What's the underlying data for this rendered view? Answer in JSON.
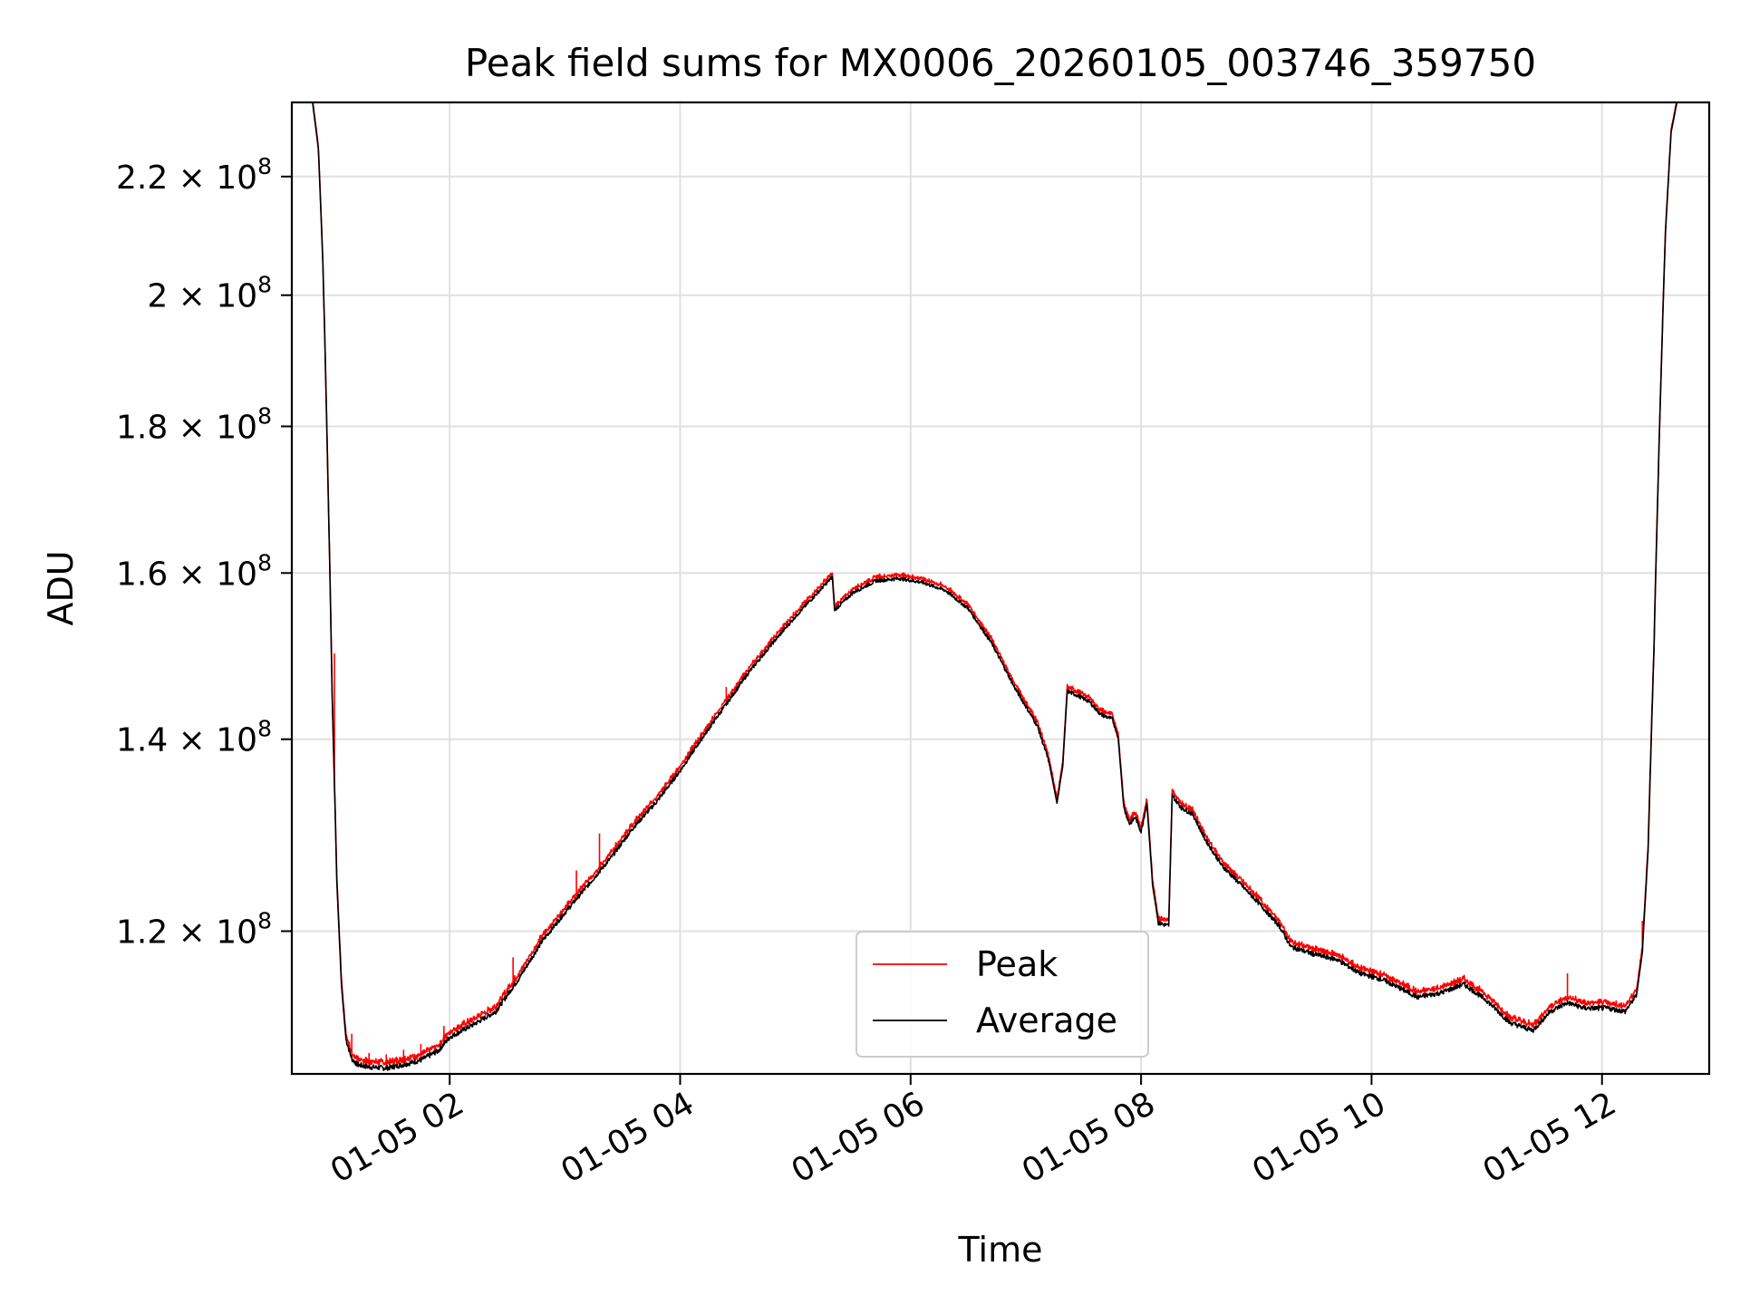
{
  "chart_data": {
    "type": "line",
    "title": "Peak field sums for MX0006_20260105_003746_359750",
    "xlabel": "Time",
    "ylabel": "ADU",
    "x_unit": "hours since 2026-01-05 00:00",
    "xlim": [
      0.63,
      12.93
    ],
    "ylim": [
      107000000,
      233500000
    ],
    "y_scale": "log",
    "grid": true,
    "legend_position": "lower-center",
    "x_ticks": [
      {
        "value": 2,
        "label": "01-05 02"
      },
      {
        "value": 4,
        "label": "01-05 04"
      },
      {
        "value": 6,
        "label": "01-05 06"
      },
      {
        "value": 8,
        "label": "01-05 08"
      },
      {
        "value": 10,
        "label": "01-05 10"
      },
      {
        "value": 12,
        "label": "01-05 12"
      }
    ],
    "y_ticks": [
      {
        "value": 120000000,
        "mantissa": "1.2",
        "exponent": "8"
      },
      {
        "value": 140000000,
        "mantissa": "1.4",
        "exponent": "8"
      },
      {
        "value": 160000000,
        "mantissa": "1.6",
        "exponent": "8"
      },
      {
        "value": 180000000,
        "mantissa": "1.8",
        "exponent": "8"
      },
      {
        "value": 200000000,
        "mantissa": "2",
        "exponent": "8"
      },
      {
        "value": 220000000,
        "mantissa": "2.2",
        "exponent": "8"
      }
    ],
    "times_symbol": "×",
    "tick_base": "10",
    "series": [
      {
        "name": "Peak",
        "color": "#ff0000"
      },
      {
        "name": "Average",
        "color": "#000000"
      }
    ],
    "average_points": [
      [
        0.81,
        233.5
      ],
      [
        0.86,
        225
      ],
      [
        0.9,
        205
      ],
      [
        0.94,
        175
      ],
      [
        0.98,
        145
      ],
      [
        1.02,
        125
      ],
      [
        1.06,
        115
      ],
      [
        1.1,
        110
      ],
      [
        1.15,
        108.3
      ],
      [
        1.2,
        107.8
      ],
      [
        1.3,
        107.6
      ],
      [
        1.45,
        107.5
      ],
      [
        1.6,
        107.8
      ],
      [
        1.75,
        108.2
      ],
      [
        1.9,
        109
      ],
      [
        2.0,
        110.2
      ],
      [
        2.2,
        111.3
      ],
      [
        2.4,
        112.5
      ],
      [
        2.6,
        115.5
      ],
      [
        2.8,
        119
      ],
      [
        3.0,
        121.8
      ],
      [
        3.2,
        124.5
      ],
      [
        3.4,
        127.3
      ],
      [
        3.6,
        130.5
      ],
      [
        3.8,
        133.2
      ],
      [
        4.0,
        136.5
      ],
      [
        4.2,
        140.3
      ],
      [
        4.4,
        144
      ],
      [
        4.6,
        147.8
      ],
      [
        4.8,
        151.2
      ],
      [
        5.0,
        154.5
      ],
      [
        5.2,
        157.6
      ],
      [
        5.32,
        159.5
      ],
      [
        5.34,
        155.3
      ],
      [
        5.5,
        157.5
      ],
      [
        5.7,
        159
      ],
      [
        5.9,
        159.3
      ],
      [
        6.1,
        158.8
      ],
      [
        6.3,
        157.8
      ],
      [
        6.5,
        155.5
      ],
      [
        6.7,
        151.3
      ],
      [
        6.9,
        146
      ],
      [
        7.1,
        141.5
      ],
      [
        7.2,
        137.5
      ],
      [
        7.27,
        133
      ],
      [
        7.32,
        137
      ],
      [
        7.36,
        145.5
      ],
      [
        7.45,
        145
      ],
      [
        7.55,
        144.3
      ],
      [
        7.65,
        142.8
      ],
      [
        7.75,
        142.3
      ],
      [
        7.8,
        140.3
      ],
      [
        7.85,
        132.5
      ],
      [
        7.9,
        130.8
      ],
      [
        7.95,
        131.5
      ],
      [
        8.0,
        130
      ],
      [
        8.05,
        133
      ],
      [
        8.1,
        124.5
      ],
      [
        8.15,
        120.8
      ],
      [
        8.24,
        120.5
      ],
      [
        8.27,
        133.8
      ],
      [
        8.35,
        132.5
      ],
      [
        8.45,
        131.8
      ],
      [
        8.55,
        129.3
      ],
      [
        8.7,
        126.5
      ],
      [
        9.0,
        123
      ],
      [
        9.2,
        120.5
      ],
      [
        9.3,
        118.5
      ],
      [
        9.5,
        117.8
      ],
      [
        9.7,
        117.3
      ],
      [
        9.9,
        116
      ],
      [
        10.1,
        115.4
      ],
      [
        10.4,
        113.8
      ],
      [
        10.6,
        114.2
      ],
      [
        10.8,
        115
      ],
      [
        11.0,
        113.5
      ],
      [
        11.2,
        111.5
      ],
      [
        11.4,
        110.8
      ],
      [
        11.55,
        112.5
      ],
      [
        11.7,
        113.3
      ],
      [
        11.85,
        112.8
      ],
      [
        12.05,
        112.8
      ],
      [
        12.2,
        112.5
      ],
      [
        12.3,
        114
      ],
      [
        12.35,
        118
      ],
      [
        12.4,
        128
      ],
      [
        12.45,
        150
      ],
      [
        12.5,
        180
      ],
      [
        12.55,
        210
      ],
      [
        12.6,
        228
      ],
      [
        12.65,
        233.5
      ]
    ],
    "average_points_unit": "millions of ADU",
    "peak_spikes": [
      [
        1.0,
        150
      ],
      [
        1.15,
        110.5
      ],
      [
        1.3,
        108.8
      ],
      [
        1.45,
        108.7
      ],
      [
        1.6,
        109.1
      ],
      [
        1.75,
        109.6
      ],
      [
        1.95,
        111.2
      ],
      [
        2.55,
        117.5
      ],
      [
        3.1,
        126
      ],
      [
        3.3,
        129.8
      ],
      [
        4.4,
        146
      ],
      [
        11.7,
        116
      ],
      [
        12.35,
        121
      ]
    ],
    "peak_spikes_unit": "millions of ADU"
  }
}
